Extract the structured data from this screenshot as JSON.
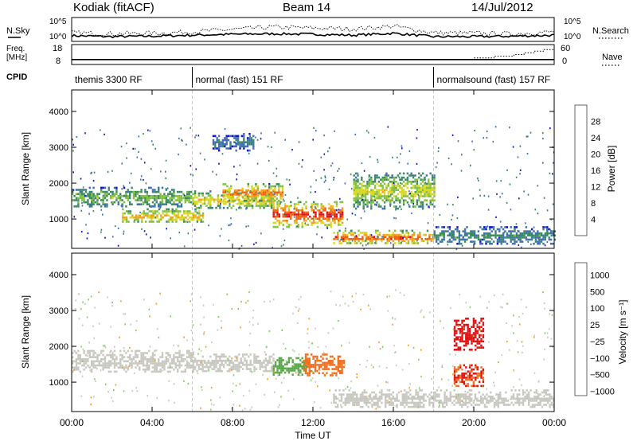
{
  "header": {
    "title": "Kodiak (fitACF)",
    "beam": "Beam 14",
    "date": "14/Jul/2012"
  },
  "noise_panel": {
    "left_label": "N.Sky",
    "right_label": "N.Search",
    "left_ticks": [
      "10^5",
      "10^0"
    ],
    "right_ticks": [
      "10^5",
      "10^0"
    ]
  },
  "freq_panel": {
    "left_label_1": "Freq.",
    "left_label_2": "[MHz]",
    "right_label": "Nave",
    "left_ticks": [
      "18",
      "8"
    ],
    "right_ticks": [
      "60",
      "0"
    ]
  },
  "cpid": {
    "label": "CPID",
    "segments": [
      {
        "name": "themis 3300 RF",
        "start": 0,
        "end": 6
      },
      {
        "name": "normal (fast) 151 RF",
        "start": 6,
        "end": 18
      },
      {
        "name": "normalsound (fast) 157 RF",
        "start": 18,
        "end": 24
      }
    ]
  },
  "x_axis": {
    "label": "Time UT",
    "ticks": [
      "00:00",
      "04:00",
      "08:00",
      "12:00",
      "16:00",
      "20:00",
      "00:00"
    ]
  },
  "power_colorbar": {
    "label": "Power [dB]",
    "ticks": [
      "4",
      "8",
      "12",
      "16",
      "20",
      "24",
      "28"
    ],
    "colors": [
      "#1010d0",
      "#3f6fb0",
      "#3a8a60",
      "#80c040",
      "#d8d820",
      "#f0a020",
      "#f06010",
      "#e01010"
    ]
  },
  "velocity_colorbar": {
    "label": "Velocity [m s⁻¹]",
    "ticks": [
      "1000",
      "500",
      "100",
      "25",
      "−25",
      "−100",
      "−500",
      "−1000"
    ],
    "colors": [
      "#2040b0",
      "#3a7a70",
      "#58a848",
      "#80d060",
      "#c8c8c0",
      "#f0a030",
      "#f07020",
      "#e01010"
    ]
  },
  "chart_data": [
    {
      "type": "line",
      "title": "N.Sky / N.Search",
      "x": [
        0,
        2,
        4,
        6,
        8,
        10,
        12,
        14,
        16,
        18,
        20,
        22,
        24
      ],
      "series": [
        {
          "name": "N.Sky",
          "values": [
            1.2,
            1.0,
            1.1,
            1.3,
            1.5,
            1.6,
            1.5,
            1.3,
            1.7,
            1.0,
            1.0,
            1.1,
            1.3
          ]
        },
        {
          "name": "N.Search",
          "values": [
            1.8,
            1.6,
            1.7,
            2.0,
            2.5,
            3.0,
            2.8,
            2.6,
            3.2,
            1.8,
            1.7,
            1.6,
            2.0
          ]
        }
      ],
      "ylim": [
        0,
        5
      ]
    },
    {
      "type": "line",
      "title": "Freq. / Nave",
      "x": [
        0,
        6,
        6.1,
        18,
        18.1,
        20,
        21,
        22,
        22.5,
        23,
        23.5,
        24
      ],
      "series": [
        {
          "name": "Freq. [MHz]",
          "values": [
            10.5,
            10.5,
            10.5,
            10.5,
            10.5,
            10.5,
            10.5,
            10.5,
            10.5,
            10.5,
            10.5,
            10.5
          ]
        },
        {
          "name": "Nave",
          "values": [
            15,
            15,
            15,
            15,
            15,
            20,
            25,
            30,
            35,
            40,
            45,
            55
          ]
        }
      ]
    },
    {
      "type": "heatmap",
      "title": "Power [dB]",
      "xlabel": "Time UT",
      "ylabel": "Slant Range [km]",
      "xlim": [
        0,
        24
      ],
      "ylim": [
        180,
        4600
      ],
      "yticks": [
        1000,
        2000,
        3000,
        4000
      ],
      "features": [
        {
          "t0": 0.0,
          "t1": 6.0,
          "r0": 1350,
          "r1": 1900,
          "level": 14
        },
        {
          "t0": 2.5,
          "t1": 6.5,
          "r0": 900,
          "r1": 1300,
          "level": 22
        },
        {
          "t0": 6.0,
          "t1": 10.0,
          "r0": 1300,
          "r1": 1800,
          "level": 20
        },
        {
          "t0": 7.5,
          "t1": 10.5,
          "r0": 1500,
          "r1": 2000,
          "level": 26
        },
        {
          "t0": 10.0,
          "t1": 13.5,
          "r0": 800,
          "r1": 1500,
          "level": 30
        },
        {
          "t0": 13.0,
          "t1": 18.0,
          "r0": 300,
          "r1": 700,
          "level": 28
        },
        {
          "t0": 14.0,
          "t1": 18.0,
          "r0": 1300,
          "r1": 2300,
          "level": 18
        },
        {
          "t0": 18.0,
          "t1": 24.0,
          "r0": 300,
          "r1": 800,
          "level": 10
        },
        {
          "t0": 7.0,
          "t1": 9.0,
          "r0": 2900,
          "r1": 3400,
          "level": 8
        }
      ]
    },
    {
      "type": "heatmap",
      "title": "Velocity [m s⁻¹]",
      "xlabel": "Time UT",
      "ylabel": "Slant Range [km]",
      "xlim": [
        0,
        24
      ],
      "ylim": [
        180,
        4600
      ],
      "yticks": [
        1000,
        2000,
        3000,
        4000
      ],
      "features": [
        {
          "t0": 0.0,
          "t1": 6.0,
          "r0": 1300,
          "r1": 1900,
          "velocity": 0
        },
        {
          "t0": 6.0,
          "t1": 10.0,
          "r0": 1300,
          "r1": 1800,
          "velocity": 0
        },
        {
          "t0": 10.0,
          "t1": 11.8,
          "r0": 1200,
          "r1": 1700,
          "velocity": 150
        },
        {
          "t0": 11.5,
          "t1": 13.5,
          "r0": 1200,
          "r1": 1800,
          "velocity": -200
        },
        {
          "t0": 13.0,
          "t1": 24.0,
          "r0": 300,
          "r1": 800,
          "velocity": 0
        },
        {
          "t0": 19.0,
          "t1": 20.5,
          "r0": 1900,
          "r1": 2800,
          "velocity": -800
        },
        {
          "t0": 19.0,
          "t1": 20.5,
          "r0": 900,
          "r1": 1500,
          "velocity": -300
        }
      ]
    }
  ]
}
